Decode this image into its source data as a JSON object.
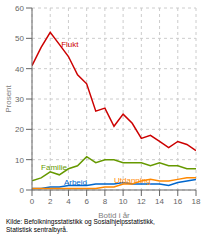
{
  "chart_data": {
    "type": "line",
    "x_label": "Botid i år",
    "y_label": "Prosent",
    "x": [
      0,
      1,
      2,
      3,
      4,
      5,
      6,
      7,
      8,
      9,
      10,
      11,
      12,
      13,
      14,
      15,
      16,
      17,
      18
    ],
    "series": [
      {
        "name": "Flukt",
        "color": "#cc0000",
        "values": [
          41,
          47,
          52,
          48,
          44,
          38,
          35,
          26,
          27,
          21,
          25,
          22,
          17,
          18,
          16,
          14,
          16,
          15,
          13
        ]
      },
      {
        "name": "Familie",
        "color": "#669900",
        "values": [
          3,
          4,
          6,
          5,
          7,
          8,
          11,
          9,
          10,
          10,
          9,
          9,
          9,
          8,
          9,
          8,
          8,
          7,
          7
        ]
      },
      {
        "name": "Arbeid",
        "color": "#0066cc",
        "values": [
          0.5,
          0.5,
          1,
          1,
          1.5,
          1.5,
          1.5,
          2,
          2,
          2,
          2.5,
          2,
          2,
          2,
          2,
          1.5,
          2.5,
          3,
          3.5
        ]
      },
      {
        "name": "Utdanning",
        "color": "#ff8800",
        "values": [
          0.5,
          0.5,
          0.5,
          0.5,
          0.5,
          0.5,
          0.5,
          0.5,
          1,
          1,
          2,
          2,
          3,
          3.5,
          3,
          3,
          3.5,
          4,
          4
        ]
      }
    ],
    "annotations": [
      {
        "text": "Flukt",
        "x": 3.2,
        "y": 48
      },
      {
        "text": "Familie",
        "x": 1.0,
        "y": 7.5
      },
      {
        "text": "Arbeid",
        "x": 3.5,
        "y": 2.5
      },
      {
        "text": "Utdanning",
        "x": 9.0,
        "y": 3.2
      }
    ],
    "source": "Kilde: Befolkningsstatistikk og Sosialhjelpsstatistikk,\nStatistisk sentralbyrå.",
    "xlim": [
      0,
      18
    ],
    "ylim": [
      0,
      60
    ],
    "xticks": [
      0,
      2,
      4,
      6,
      8,
      10,
      12,
      14,
      16,
      18
    ],
    "yticks": [
      0,
      10,
      20,
      30,
      40,
      50,
      60
    ],
    "grid": true
  }
}
